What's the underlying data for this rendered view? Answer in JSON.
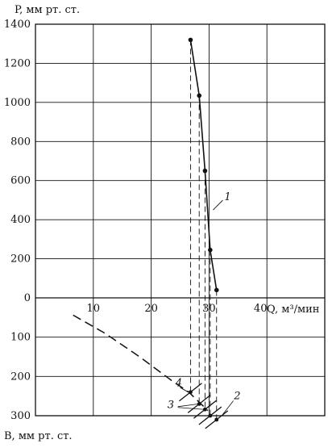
{
  "chart_data": {
    "type": "line",
    "top_panel": {
      "ylabel": "P, мм рт. ст.",
      "xlabel": "Q, м³/мин",
      "ylim": [
        0,
        1400
      ],
      "xlim": [
        0,
        50
      ],
      "y_ticks": [
        0,
        200,
        400,
        600,
        800,
        1000,
        1200,
        1400
      ],
      "x_ticks": [
        10,
        20,
        30,
        40
      ],
      "grid": true,
      "series": [
        {
          "label": "1",
          "points": [
            {
              "x": 26.8,
              "y": 1320
            },
            {
              "x": 28.3,
              "y": 1035
            },
            {
              "x": 29.3,
              "y": 650
            },
            {
              "x": 30.2,
              "y": 245
            },
            {
              "x": 31.3,
              "y": 40
            }
          ]
        }
      ]
    },
    "bottom_panel": {
      "ylabel": "B, мм рт. ст.",
      "ylim": [
        0,
        300
      ],
      "y_ticks": [
        100,
        200,
        300
      ],
      "grid": true,
      "curve_4": {
        "label": "4",
        "points": [
          {
            "x": 6.5,
            "y": 44
          },
          {
            "x": 12,
            "y": 90
          },
          {
            "x": 18,
            "y": 150
          },
          {
            "x": 23.5,
            "y": 210
          },
          {
            "x": 26.5,
            "y": 240
          },
          {
            "x": 29.8,
            "y": 287
          }
        ]
      },
      "crossing_lines": [
        {
          "label": "3",
          "x": 26.8,
          "y": 240
        },
        {
          "label": "3",
          "x": 28.3,
          "y": 270
        },
        {
          "label": "3",
          "x": 29.3,
          "y": 284
        },
        {
          "label": "2",
          "x": 30.2,
          "y": 300
        },
        {
          "label": "2",
          "x": 31.3,
          "y": 310
        }
      ],
      "labels": [
        "4",
        "3",
        "2"
      ]
    }
  }
}
